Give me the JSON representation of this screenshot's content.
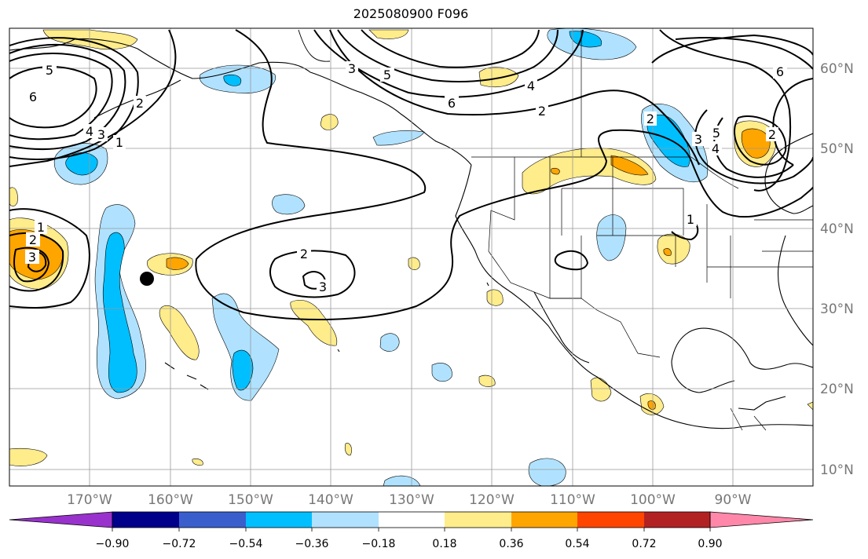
{
  "title": "2025080900 F096",
  "axes": {
    "lon_labels": [
      "170°W",
      "160°W",
      "150°W",
      "140°W",
      "130°W",
      "120°W",
      "110°W",
      "100°W",
      "90°W"
    ],
    "lat_labels": [
      "60°N",
      "50°N",
      "40°N",
      "30°N",
      "20°N",
      "10°N"
    ]
  },
  "colorbar": {
    "ticks": [
      "−0.90",
      "−0.72",
      "−0.54",
      "−0.36",
      "−0.18",
      "0.18",
      "0.36",
      "0.54",
      "0.72",
      "0.90"
    ],
    "colors": [
      "#9932cc",
      "#00008b",
      "#3a5fcd",
      "#00bfff",
      "#b0e2ff",
      "#ffffff",
      "#ffec8b",
      "#ffa500",
      "#ff4500",
      "#b22222",
      "#ff88aa"
    ]
  },
  "contour_labels": [
    "5",
    "6",
    "4",
    "3",
    "2",
    "1",
    "5",
    "3",
    "2",
    "6",
    "4",
    "2",
    "5",
    "6",
    "4",
    "3",
    "2",
    "3",
    "2",
    "1",
    "2",
    "3",
    "1"
  ],
  "marker": "storm-position-dot"
}
